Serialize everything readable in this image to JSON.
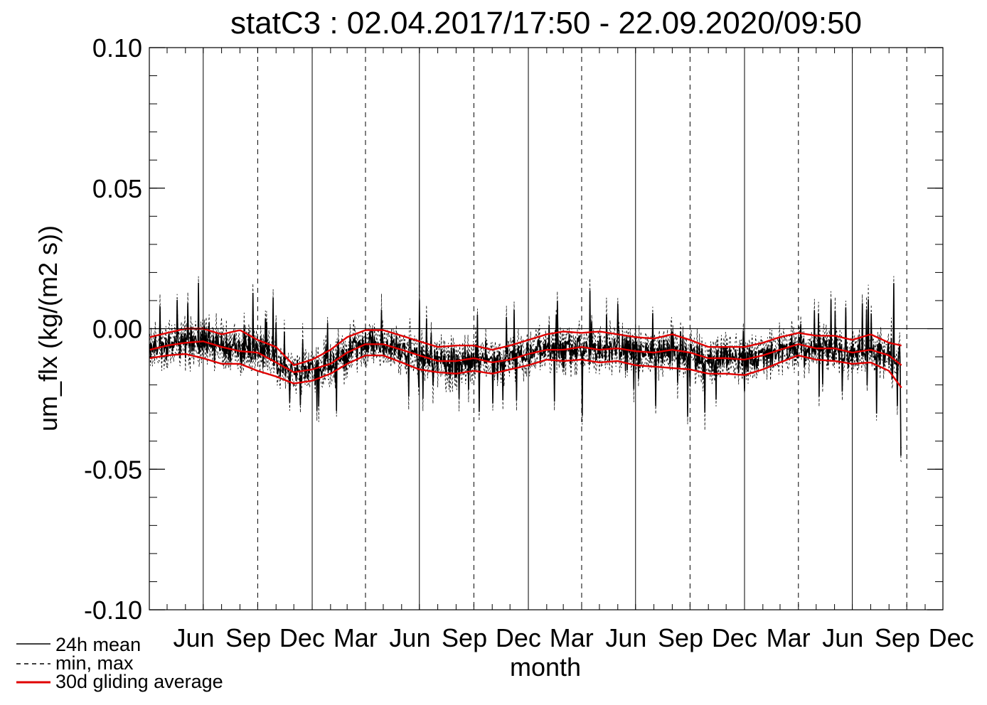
{
  "chart_data": {
    "type": "line",
    "title": "statC3 : 02.04.2017/17:50 - 22.09.2020/09:50",
    "xlabel": "month",
    "ylabel": "um_flx (kg/(m2 s))",
    "ylim": [
      -0.1,
      0.1
    ],
    "yticks": [
      "0.10",
      "0.05",
      "0.00",
      "-0.05",
      "-0.10"
    ],
    "ytick_values": [
      0.1,
      0.05,
      0.0,
      -0.05,
      -0.1
    ],
    "months": [
      "Jun",
      "Sep",
      "Dec",
      "Mar",
      "Jun",
      "Sep",
      "Dec",
      "Mar",
      "Jun",
      "Sep",
      "Dec",
      "Mar",
      "Jun",
      "Sep",
      "Dec"
    ],
    "x_start": "2017-04-02",
    "x_end": "2020-09-22",
    "series": [
      {
        "name": "24h mean",
        "style": "solid",
        "color": "#000000"
      },
      {
        "name": "min, max",
        "style": "dashed",
        "color": "#000000"
      },
      {
        "name": "30d gliding average",
        "style": "solid",
        "color": "#e00000"
      }
    ],
    "gliding_average": {
      "dates": [
        "2017-04-02",
        "2017-05-01",
        "2017-06-01",
        "2017-07-01",
        "2017-08-01",
        "2017-09-01",
        "2017-10-01",
        "2017-11-01",
        "2017-12-01",
        "2018-01-01",
        "2018-02-01",
        "2018-03-01",
        "2018-04-01",
        "2018-05-01",
        "2018-06-01",
        "2018-07-01",
        "2018-08-01",
        "2018-09-01",
        "2018-10-01",
        "2018-11-01",
        "2018-12-01",
        "2019-01-01",
        "2019-02-01",
        "2019-03-01",
        "2019-04-01",
        "2019-05-01",
        "2019-06-01",
        "2019-07-01",
        "2019-08-01",
        "2019-09-01",
        "2019-10-01",
        "2019-11-01",
        "2019-12-01",
        "2020-01-01",
        "2020-02-01",
        "2020-03-01",
        "2020-04-01",
        "2020-05-01",
        "2020-06-01",
        "2020-07-01",
        "2020-08-01",
        "2020-09-01",
        "2020-09-22"
      ],
      "mean": [
        -0.0075,
        -0.006,
        -0.005,
        -0.0045,
        -0.0065,
        -0.008,
        -0.0085,
        -0.012,
        -0.0155,
        -0.0145,
        -0.0125,
        -0.0085,
        -0.0055,
        -0.0055,
        -0.0075,
        -0.0095,
        -0.0115,
        -0.0115,
        -0.0105,
        -0.012,
        -0.011,
        -0.009,
        -0.0075,
        -0.0075,
        -0.0065,
        -0.0075,
        -0.007,
        -0.008,
        -0.0085,
        -0.0075,
        -0.0085,
        -0.0105,
        -0.0105,
        -0.011,
        -0.0095,
        -0.0075,
        -0.0055,
        -0.007,
        -0.007,
        -0.0085,
        -0.0075,
        -0.0095,
        -0.013
      ],
      "upper": [
        -0.003,
        -0.0015,
        0.0,
        0.0,
        -0.002,
        -0.0005,
        -0.004,
        -0.0065,
        -0.013,
        -0.011,
        -0.0075,
        -0.003,
        -0.0005,
        -0.0005,
        -0.0025,
        -0.0045,
        -0.0065,
        -0.006,
        -0.006,
        -0.0075,
        -0.006,
        -0.004,
        -0.002,
        -0.001,
        -0.0015,
        -0.001,
        -0.002,
        -0.003,
        -0.0035,
        -0.002,
        -0.004,
        -0.0065,
        -0.0065,
        -0.0065,
        -0.005,
        -0.003,
        -0.0015,
        -0.0025,
        -0.0025,
        -0.004,
        -0.002,
        -0.005,
        -0.006
      ],
      "lower": [
        -0.0105,
        -0.0095,
        -0.009,
        -0.0105,
        -0.0125,
        -0.0125,
        -0.015,
        -0.017,
        -0.0195,
        -0.0185,
        -0.016,
        -0.0125,
        -0.0095,
        -0.0095,
        -0.012,
        -0.0145,
        -0.0155,
        -0.016,
        -0.015,
        -0.016,
        -0.0145,
        -0.013,
        -0.011,
        -0.0115,
        -0.011,
        -0.012,
        -0.0115,
        -0.013,
        -0.0135,
        -0.014,
        -0.0145,
        -0.016,
        -0.016,
        -0.0165,
        -0.0145,
        -0.012,
        -0.0095,
        -0.011,
        -0.0115,
        -0.0125,
        -0.012,
        -0.015,
        -0.021
      ]
    }
  },
  "legend": {
    "mean_label": "24h mean",
    "minmax_label": "min, max",
    "average_label": "30d gliding average"
  }
}
